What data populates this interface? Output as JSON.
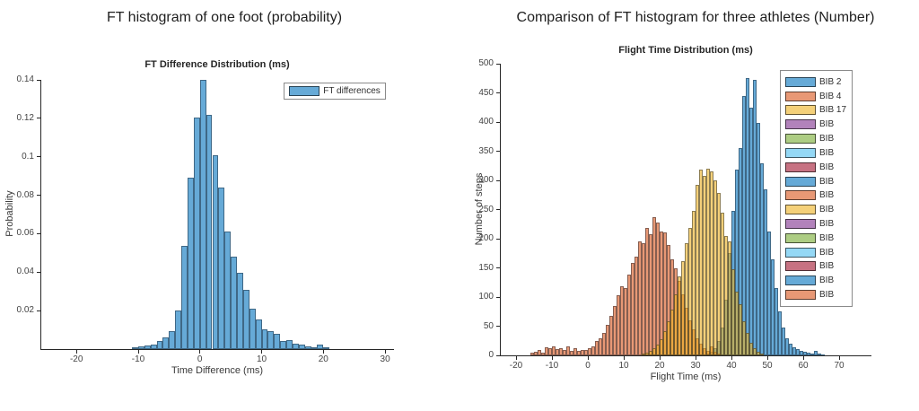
{
  "chart_data": [
    {
      "type": "bar",
      "subtype": "histogram",
      "panel_title": "FT histogram of one foot (probability)",
      "title": "FT Difference Distribution (ms)",
      "xlabel": "Time Difference (ms)",
      "ylabel": "Probability",
      "xlim": [
        -25.7,
        31.3
      ],
      "ylim": [
        0,
        0.14
      ],
      "grid": false,
      "legend_position": "top-right-inside",
      "xticks": [
        -20,
        -10,
        0,
        10,
        20,
        30
      ],
      "xtick_labels": [
        "-20",
        "-10",
        "0",
        "10",
        "20",
        "30"
      ],
      "yticks": [
        0.02,
        0.04,
        0.06,
        0.08,
        0.1,
        0.12,
        0.14
      ],
      "ytick_labels": [
        "0.02",
        "0.04",
        "0.06",
        "0.08",
        "0.1",
        "0.12",
        "0.14"
      ],
      "legend": [
        {
          "label": "FT differences",
          "color": "#0072BD"
        }
      ],
      "series": [
        {
          "name": "FT differences",
          "color": "#0072BD",
          "alpha": 0.6,
          "bin_start": -11,
          "bin_width": 1,
          "values": [
            0.0008,
            0.0012,
            0.0018,
            0.0025,
            0.004,
            0.006,
            0.0095,
            0.02,
            0.0535,
            0.089,
            0.1205,
            0.14,
            0.122,
            0.101,
            0.084,
            0.061,
            0.048,
            0.0395,
            0.031,
            0.021,
            0.0155,
            0.0105,
            0.0095,
            0.008,
            0.004,
            0.0048,
            0.0028,
            0.0022,
            0.0012,
            0.001,
            0.0022,
            0.0008
          ]
        }
      ]
    },
    {
      "type": "bar",
      "subtype": "histogram",
      "panel_title": "Comparison of FT histogram for three athletes (Number)",
      "title": "Flight Time Distribution (ms)",
      "xlabel": "Flight Time (ms)",
      "ylabel": "Number of steps",
      "xlim": [
        -24.25,
        78.75
      ],
      "ylim": [
        0,
        500
      ],
      "grid": false,
      "legend_position": "top-right-inside",
      "xticks": [
        -20,
        -10,
        0,
        10,
        20,
        30,
        40,
        50,
        60,
        70
      ],
      "xtick_labels": [
        "-20",
        "-10",
        "0",
        "10",
        "20",
        "30",
        "40",
        "50",
        "60",
        "70"
      ],
      "yticks": [
        0,
        50,
        100,
        150,
        200,
        250,
        300,
        350,
        400,
        450,
        500
      ],
      "ytick_labels": [
        "0",
        "50",
        "100",
        "150",
        "200",
        "250",
        "300",
        "350",
        "400",
        "450",
        "500"
      ],
      "matlab_color_order": [
        "#0072BD",
        "#D95319",
        "#EDB120",
        "#7E2F8E",
        "#77AC30",
        "#4DBEEE",
        "#A2142F"
      ],
      "legend": [
        {
          "label": "BIB 2",
          "color": "#0072BD"
        },
        {
          "label": "BIB 4",
          "color": "#D95319"
        },
        {
          "label": "BIB 17",
          "color": "#EDB120"
        },
        {
          "label": "BIB",
          "color": "#7E2F8E"
        },
        {
          "label": "BIB",
          "color": "#77AC30"
        },
        {
          "label": "BIB",
          "color": "#4DBEEE"
        },
        {
          "label": "BIB",
          "color": "#A2142F"
        },
        {
          "label": "BIB",
          "color": "#0072BD"
        },
        {
          "label": "BIB",
          "color": "#D95319"
        },
        {
          "label": "BIB",
          "color": "#EDB120"
        },
        {
          "label": "BIB",
          "color": "#7E2F8E"
        },
        {
          "label": "BIB",
          "color": "#77AC30"
        },
        {
          "label": "BIB",
          "color": "#4DBEEE"
        },
        {
          "label": "BIB",
          "color": "#A2142F"
        },
        {
          "label": "BIB",
          "color": "#0072BD"
        },
        {
          "label": "BIB",
          "color": "#D95319"
        }
      ],
      "series": [
        {
          "name": "BIB 2",
          "color": "#0072BD",
          "alpha": 0.6,
          "bin_start": 33,
          "bin_width": 1,
          "values": [
            3,
            6,
            12,
            25,
            48,
            95,
            175,
            248,
            318,
            355,
            445,
            475,
            425,
            472,
            398,
            330,
            285,
            212,
            165,
            115,
            75,
            48,
            30,
            20,
            14,
            11,
            8,
            6,
            4,
            3,
            8,
            3,
            2
          ]
        },
        {
          "name": "BIB 4",
          "color": "#D95319",
          "alpha": 0.6,
          "bin_start": -16,
          "bin_width": 1,
          "values": [
            4,
            6,
            9,
            5,
            14,
            12,
            16,
            11,
            13,
            9,
            16,
            8,
            12,
            7,
            9,
            10,
            12,
            16,
            24,
            30,
            38,
            52,
            68,
            85,
            103,
            118,
            116,
            138,
            158,
            170,
            196,
            193,
            218,
            208,
            237,
            228,
            213,
            211,
            190,
            165,
            150,
            128,
            105,
            82,
            60,
            45,
            30,
            20,
            12,
            8,
            16,
            6,
            3
          ]
        },
        {
          "name": "BIB 17",
          "color": "#EDB120",
          "alpha": 0.6,
          "bin_start": 15,
          "bin_width": 1,
          "values": [
            3,
            5,
            8,
            12,
            18,
            28,
            42,
            58,
            78,
            105,
            135,
            162,
            192,
            218,
            248,
            292,
            318,
            308,
            320,
            315,
            300,
            278,
            245,
            205,
            196,
            148,
            110,
            88,
            58,
            38,
            22,
            12,
            6,
            3
          ]
        }
      ]
    }
  ]
}
